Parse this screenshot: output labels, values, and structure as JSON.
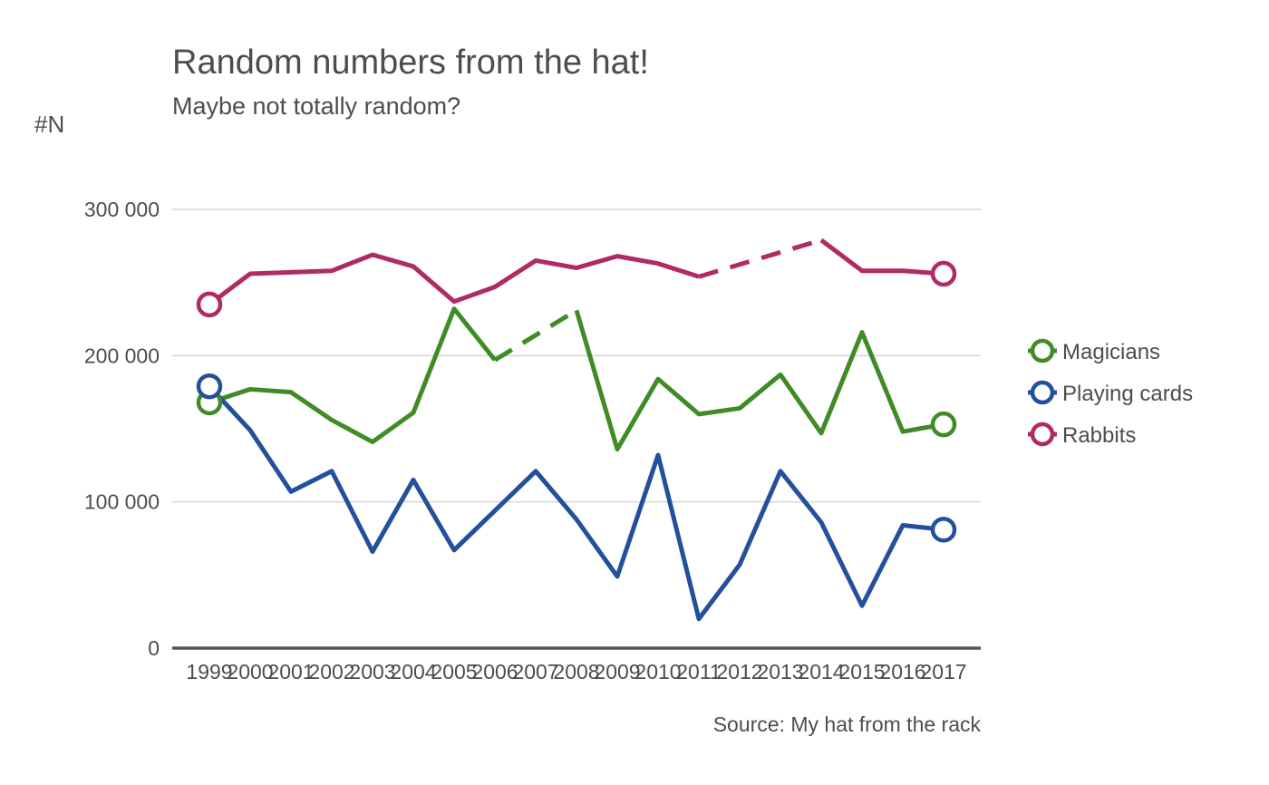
{
  "chart_data": {
    "type": "line",
    "title": "Random numbers from the hat!",
    "subtitle": "Maybe not totally random?",
    "ylabel": "#N",
    "xlabel": "",
    "caption": "Source: My hat from the rack",
    "x": [
      1999,
      2000,
      2001,
      2002,
      2003,
      2004,
      2005,
      2006,
      2007,
      2008,
      2009,
      2010,
      2011,
      2012,
      2013,
      2014,
      2015,
      2016,
      2017
    ],
    "x_tick_labels": [
      "1999",
      "2000",
      "2001",
      "2002",
      "2003",
      "2004",
      "2005",
      "2006",
      "2007",
      "2008",
      "2009",
      "2010",
      "2011",
      "2012",
      "2013",
      "2014",
      "2015",
      "2016",
      "2017"
    ],
    "ylim": [
      0,
      300000
    ],
    "y_ticks": [
      0,
      100000,
      200000,
      300000
    ],
    "y_tick_labels": [
      "0",
      "100 000",
      "200 000",
      "300 000"
    ],
    "grid": "horizontal",
    "legend_position": "right",
    "series": [
      {
        "name": "Magicians",
        "color": "#3f8c27",
        "values": [
          168000,
          177000,
          175000,
          156000,
          141000,
          161000,
          232000,
          197000,
          null,
          231000,
          136000,
          184000,
          160000,
          164000,
          187000,
          147000,
          216000,
          148000,
          153000
        ],
        "dashed_segments": [
          [
            2006,
            2008
          ]
        ]
      },
      {
        "name": "Playing cards",
        "color": "#23509c",
        "values": [
          179000,
          149000,
          107000,
          121000,
          66000,
          115000,
          67000,
          94000,
          121000,
          88000,
          49000,
          132000,
          20000,
          57000,
          121000,
          86000,
          29000,
          84000,
          81000
        ],
        "dashed_segments": []
      },
      {
        "name": "Rabbits",
        "color": "#b02a63",
        "values": [
          235000,
          256000,
          257000,
          258000,
          269000,
          261000,
          237000,
          247000,
          265000,
          260000,
          268000,
          263000,
          254000,
          null,
          null,
          279000,
          258000,
          258000,
          256000
        ],
        "dashed_segments": [
          [
            2011,
            2014
          ]
        ]
      }
    ]
  }
}
